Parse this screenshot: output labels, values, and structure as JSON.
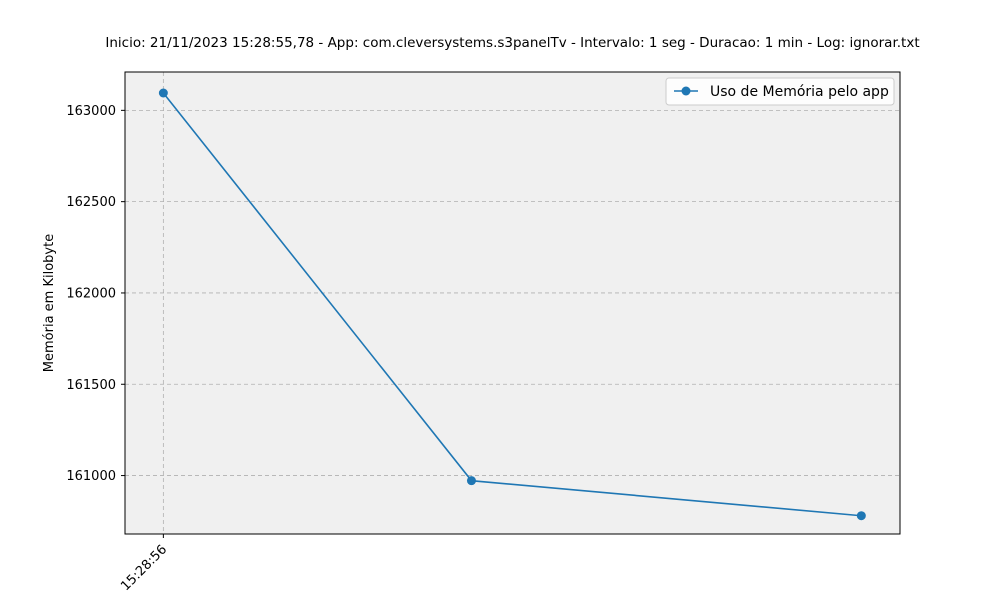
{
  "chart_data": {
    "type": "line",
    "title": "Inicio: 21/11/2023 15:28:55,78 - App: com.cleversystems.s3panelTv - Intervalo: 1 seg - Duracao: 1 min - Log: ignorar.txt",
    "xlabel": "",
    "ylabel": "Memória em Kilobyte",
    "x_tick_labels": [
      "15:28:56"
    ],
    "y_ticks": [
      161000,
      161500,
      162000,
      162500,
      163000
    ],
    "ylim": [
      160680,
      163210
    ],
    "xlim": [
      -0.122,
      2.343
    ],
    "grid": true,
    "legend_position": "top-right",
    "series": [
      {
        "name": "Uso de Memória pelo app",
        "color": "#1f77b4",
        "x": [
          0,
          0.98,
          2.22
        ],
        "values": [
          163095,
          160972,
          160780
        ]
      }
    ]
  }
}
